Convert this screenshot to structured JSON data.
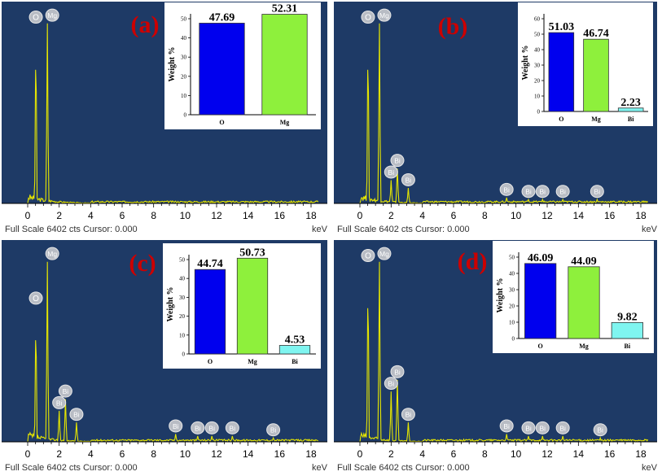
{
  "chart_data": [
    {
      "label": "(a)",
      "type": "bar",
      "spectrum": {
        "x_axis": {
          "xlim": [
            -0.5,
            19
          ],
          "ticks": [
            0,
            2,
            4,
            6,
            8,
            10,
            12,
            14,
            16,
            18
          ],
          "unit": "keV"
        },
        "footer": "Full Scale 6402 cts Cursor: 0.000",
        "peaks": [
          {
            "element": "O",
            "energy": 0.52,
            "height": 0.92
          },
          {
            "element": "Mg",
            "energy": 1.25,
            "height": 0.93
          }
        ]
      },
      "inset": {
        "ylabel": "Weight %",
        "ylim": [
          0,
          50
        ],
        "yticks": [
          0,
          10,
          20,
          30,
          40,
          50
        ],
        "categories": [
          "O",
          "Mg"
        ],
        "values": [
          47.69,
          52.31
        ],
        "value_labels": [
          "47.69",
          "52.31"
        ]
      }
    },
    {
      "label": "(b)",
      "type": "bar",
      "spectrum": {
        "x_axis": {
          "xlim": [
            -0.5,
            19
          ],
          "ticks": [
            0,
            2,
            4,
            6,
            8,
            10,
            12,
            14,
            16,
            18
          ],
          "unit": "keV"
        },
        "footer": "Full Scale 6402 cts Cursor: 0.000",
        "peaks": [
          {
            "element": "O",
            "energy": 0.52,
            "height": 0.92
          },
          {
            "element": "Mg",
            "energy": 1.25,
            "height": 0.93
          },
          {
            "element": "Bi",
            "energy": 2.0,
            "height": 0.12
          },
          {
            "element": "Bi",
            "energy": 2.4,
            "height": 0.18
          },
          {
            "element": "Bi",
            "energy": 3.1,
            "height": 0.08
          },
          {
            "element": "Bi",
            "energy": 9.4,
            "height": 0.03
          },
          {
            "element": "Bi",
            "energy": 10.8,
            "height": 0.02
          },
          {
            "element": "Bi",
            "energy": 11.7,
            "height": 0.02
          },
          {
            "element": "Bi",
            "energy": 13.0,
            "height": 0.02
          },
          {
            "element": "Bi",
            "energy": 15.2,
            "height": 0.02
          }
        ]
      },
      "inset": {
        "ylabel": "Weight %",
        "ylim": [
          0,
          60
        ],
        "yticks": [
          0,
          10,
          20,
          30,
          40,
          50,
          60
        ],
        "categories": [
          "O",
          "Mg",
          "Bi"
        ],
        "values": [
          51.03,
          46.74,
          2.23
        ],
        "value_labels": [
          "51.03",
          "46.74",
          "2.23"
        ]
      }
    },
    {
      "label": "(c)",
      "type": "bar",
      "spectrum": {
        "x_axis": {
          "xlim": [
            -0.5,
            19
          ],
          "ticks": [
            0,
            2,
            4,
            6,
            8,
            10,
            12,
            14,
            16,
            18
          ],
          "unit": "keV"
        },
        "footer": "Full Scale 6402 cts Cursor: 0.000",
        "peaks": [
          {
            "element": "O",
            "energy": 0.52,
            "height": 0.7
          },
          {
            "element": "Mg",
            "energy": 1.25,
            "height": 0.93
          },
          {
            "element": "Bi",
            "energy": 2.0,
            "height": 0.16
          },
          {
            "element": "Bi",
            "energy": 2.4,
            "height": 0.22
          },
          {
            "element": "Bi",
            "energy": 3.1,
            "height": 0.1
          },
          {
            "element": "Bi",
            "energy": 9.4,
            "height": 0.04
          },
          {
            "element": "Bi",
            "energy": 10.8,
            "height": 0.03
          },
          {
            "element": "Bi",
            "energy": 11.7,
            "height": 0.03
          },
          {
            "element": "Bi",
            "energy": 13.0,
            "height": 0.03
          },
          {
            "element": "Bi",
            "energy": 15.6,
            "height": 0.02
          }
        ]
      },
      "inset": {
        "ylabel": "Weight %",
        "ylim": [
          0,
          50
        ],
        "yticks": [
          0,
          10,
          20,
          30,
          40,
          50
        ],
        "categories": [
          "O",
          "Mg",
          "Bi"
        ],
        "values": [
          44.74,
          50.73,
          4.53
        ],
        "value_labels": [
          "44.74",
          "50.73",
          "4.53"
        ]
      }
    },
    {
      "label": "(d)",
      "type": "bar",
      "spectrum": {
        "x_axis": {
          "xlim": [
            -0.5,
            19
          ],
          "ticks": [
            0,
            2,
            4,
            6,
            8,
            10,
            12,
            14,
            16,
            18
          ],
          "unit": "keV"
        },
        "footer": "Full Scale 6402 cts Cursor: 0.000",
        "peaks": [
          {
            "element": "O",
            "energy": 0.52,
            "height": 0.92
          },
          {
            "element": "Mg",
            "energy": 1.25,
            "height": 0.93
          },
          {
            "element": "Bi",
            "energy": 2.0,
            "height": 0.26
          },
          {
            "element": "Bi",
            "energy": 2.4,
            "height": 0.32
          },
          {
            "element": "Bi",
            "energy": 3.1,
            "height": 0.1
          },
          {
            "element": "Bi",
            "energy": 9.4,
            "height": 0.04
          },
          {
            "element": "Bi",
            "energy": 10.8,
            "height": 0.03
          },
          {
            "element": "Bi",
            "energy": 11.7,
            "height": 0.03
          },
          {
            "element": "Bi",
            "energy": 13.0,
            "height": 0.03
          },
          {
            "element": "Bi",
            "energy": 15.4,
            "height": 0.02
          }
        ]
      },
      "inset": {
        "ylabel": "Weight %",
        "ylim": [
          0,
          50
        ],
        "yticks": [
          0,
          10,
          20,
          30,
          40,
          50
        ],
        "categories": [
          "O",
          "Mg",
          "Bi"
        ],
        "values": [
          46.09,
          44.09,
          9.82
        ],
        "value_labels": [
          "46.09",
          "44.09",
          "9.82"
        ]
      }
    }
  ],
  "colors": {
    "plot_background": "#1e3a66",
    "spectrum": "#e6e600",
    "peak_label_fill": "#b8bcc4",
    "panel_label": "#cc0000",
    "bar_colors": [
      "#0000ee",
      "#8ef03c",
      "#7ff5f0"
    ]
  }
}
